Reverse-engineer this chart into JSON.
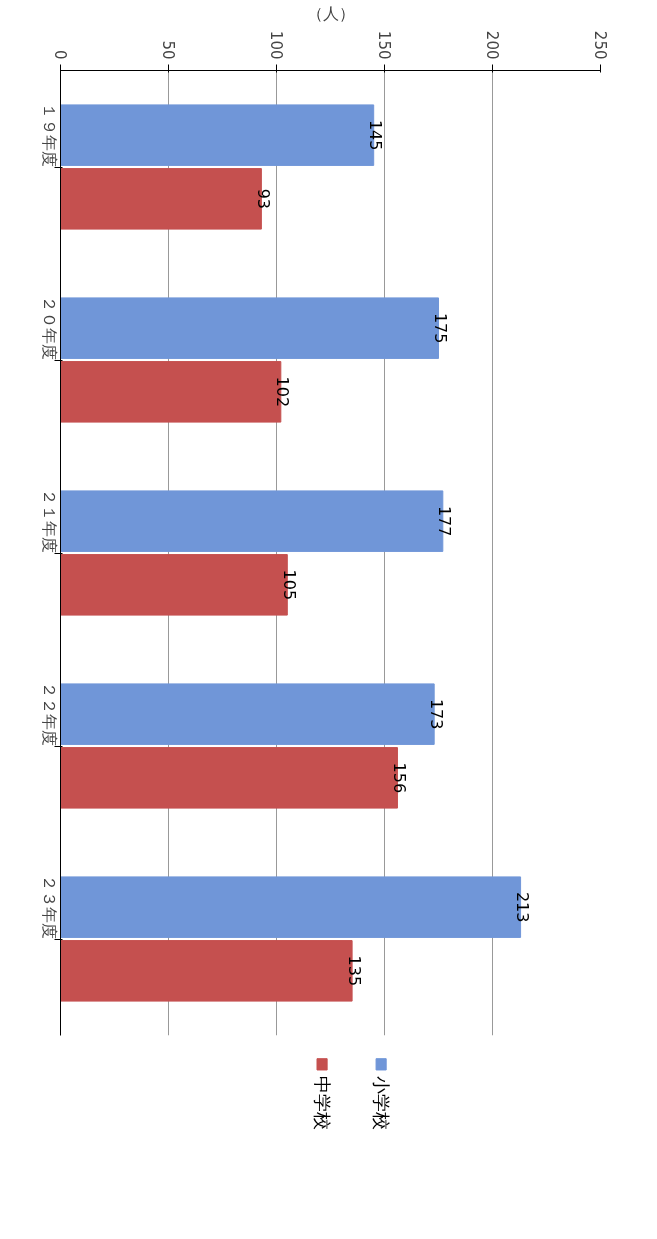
{
  "chart_data": {
    "type": "bar",
    "orientation": "horizontal",
    "xlabel": "（人）",
    "categories": [
      "１９年度",
      "２０年度",
      "２１年度",
      "２２年度",
      "２３年度"
    ],
    "series": [
      {
        "name": "小学校",
        "color": "#7096d8",
        "values": [
          145,
          175,
          177,
          173,
          213
        ]
      },
      {
        "name": "中学校",
        "color": "#c5504f",
        "values": [
          93,
          102,
          105,
          156,
          135
        ]
      }
    ],
    "xlim": [
      0,
      250
    ],
    "xticks": [
      0,
      50,
      100,
      150,
      200,
      250
    ],
    "grid": "x",
    "data_labels": true,
    "legend": "bottom right"
  }
}
